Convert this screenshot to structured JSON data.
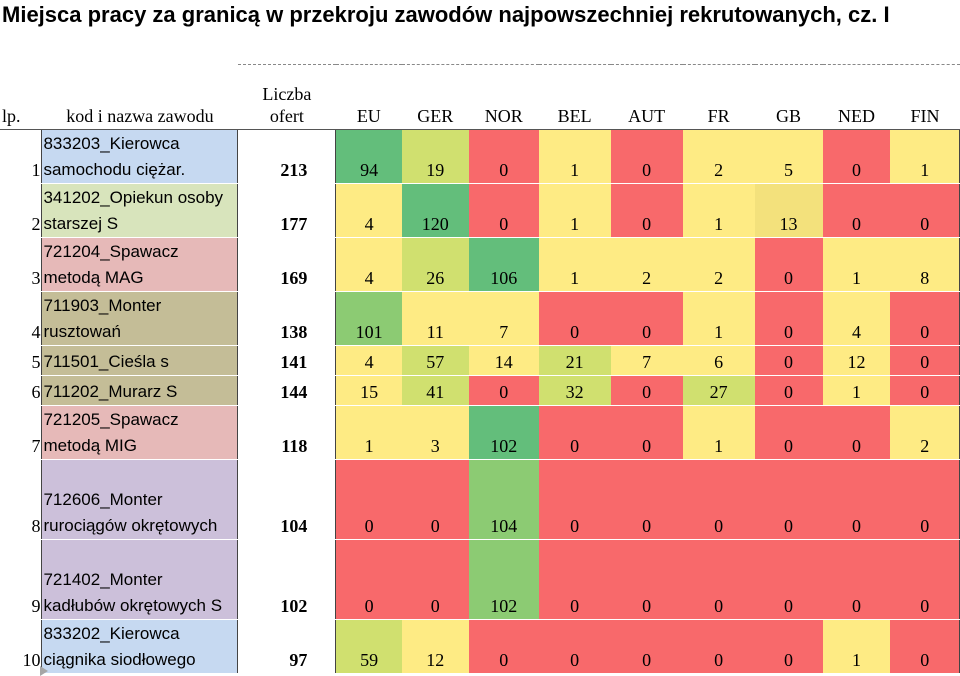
{
  "title": "Miejsca pracy za granicą w przekroju zawodów najpowszechniej rekrutowanych, cz. I",
  "headers": {
    "lp": "lp.",
    "kod": "kod i nazwa zawodu",
    "count_line1": "Liczba",
    "count_line2": "ofert",
    "countries": [
      "EU",
      "GER",
      "NOR",
      "BEL",
      "AUT",
      "FR",
      "GB",
      "NED",
      "FIN"
    ]
  },
  "rows": [
    {
      "lp": "1",
      "name": "833203_Kierowca samochodu ciężar.",
      "count": "213",
      "values": [
        "94",
        "19",
        "0",
        "1",
        "0",
        "2",
        "5",
        "0",
        "1"
      ]
    },
    {
      "lp": "2",
      "name": "341202_Opiekun osoby starszej S",
      "count": "177",
      "values": [
        "4",
        "120",
        "0",
        "1",
        "0",
        "1",
        "13",
        "0",
        "0"
      ]
    },
    {
      "lp": "3",
      "name": "721204_Spawacz metodą MAG",
      "count": "169",
      "values": [
        "4",
        "26",
        "106",
        "1",
        "2",
        "2",
        "0",
        "1",
        "8"
      ]
    },
    {
      "lp": "4",
      "name": "711903_Monter rusztowań",
      "count": "138",
      "values": [
        "101",
        "11",
        "7",
        "0",
        "0",
        "1",
        "0",
        "4",
        "0"
      ]
    },
    {
      "lp": "5",
      "name": "711501_Cieśla s",
      "count": "141",
      "values": [
        "4",
        "57",
        "14",
        "21",
        "7",
        "6",
        "0",
        "12",
        "0"
      ]
    },
    {
      "lp": "6",
      "name": "711202_Murarz S",
      "count": "144",
      "values": [
        "15",
        "41",
        "0",
        "32",
        "0",
        "27",
        "0",
        "1",
        "0"
      ]
    },
    {
      "lp": "7",
      "name": "721205_Spawacz metodą MIG",
      "count": "118",
      "values": [
        "1",
        "3",
        "102",
        "0",
        "0",
        "1",
        "0",
        "0",
        "2"
      ]
    },
    {
      "lp": "8",
      "name": "712606_Monter rurociągów okrętowych",
      "count": "104",
      "values": [
        "0",
        "0",
        "104",
        "0",
        "0",
        "0",
        "0",
        "0",
        "0"
      ]
    },
    {
      "lp": "9",
      "name": "721402_Monter kadłubów okrętowych S",
      "count": "102",
      "values": [
        "0",
        "0",
        "102",
        "0",
        "0",
        "0",
        "0",
        "0",
        "0"
      ]
    },
    {
      "lp": "10",
      "name": "833202_Kierowca ciągnika siodłowego",
      "count": "97",
      "values": [
        "59",
        "12",
        "0",
        "0",
        "0",
        "0",
        "0",
        "1",
        "0"
      ]
    }
  ],
  "colors": {
    "green_dark": "#63be7b",
    "green_mid": "#8ccb73",
    "green_light": "#d0e06f",
    "yellow": "#feeb84",
    "red": "#f8696b",
    "orange": "#fbaa77"
  }
}
